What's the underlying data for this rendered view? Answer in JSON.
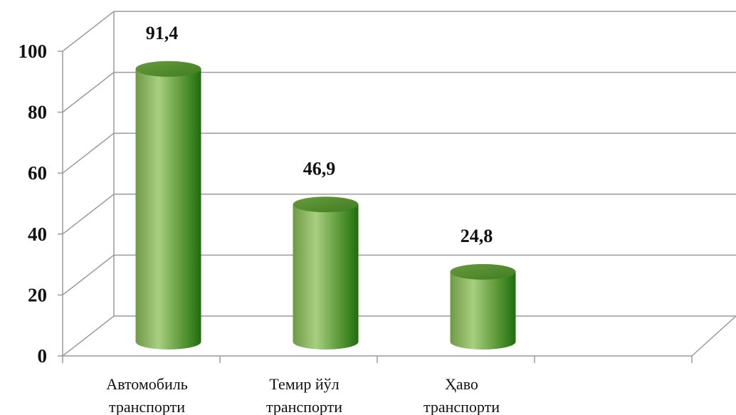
{
  "chart_data": {
    "type": "bar",
    "style": "3d-cylinder",
    "categories": [
      "Автомобиль транспорти",
      "Темир йўл транспорти",
      "Ҳаво транспорти"
    ],
    "category_lines": [
      [
        "Автомобиль",
        "транспорти"
      ],
      [
        "Темир йўл",
        "транспорти"
      ],
      [
        "Ҳаво",
        "транспорти"
      ]
    ],
    "values": [
      91.4,
      46.9,
      24.8
    ],
    "data_labels": [
      "91,4",
      "46,9",
      "24,8"
    ],
    "ylim": [
      0,
      100
    ],
    "yticks": [
      0,
      20,
      40,
      60,
      80,
      100
    ],
    "grid": true,
    "legend": "none",
    "colors": {
      "bar_dark": "#1e6e0e",
      "bar_mid": "#5f9a3a",
      "bar_light": "#a8cf80",
      "grid": "#9a9a9a"
    }
  }
}
